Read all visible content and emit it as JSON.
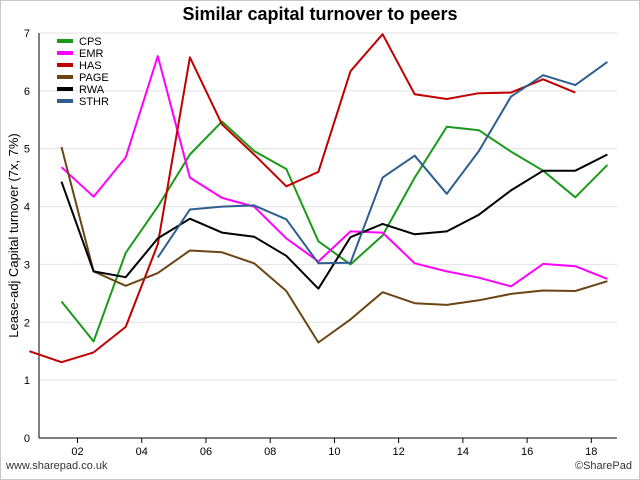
{
  "page": {
    "title": "Similar capital turnover to peers",
    "footer_left": "www.sharepad.co.uk",
    "footer_right": "©SharePad"
  },
  "chart_data": {
    "type": "line",
    "title": "Similar capital turnover to peers",
    "xlabel": "",
    "ylabel": "Lease-adj Capital turnover (7x, 7%)",
    "xlim": [
      2000.8,
      2018.8
    ],
    "ylim": [
      0,
      7
    ],
    "xticks": [
      2002,
      2004,
      2006,
      2008,
      2010,
      2012,
      2014,
      2016,
      2018
    ],
    "xtick_labels": [
      "02",
      "04",
      "06",
      "08",
      "10",
      "12",
      "14",
      "16",
      "18"
    ],
    "yticks": [
      0,
      1,
      2,
      3,
      4,
      5,
      6,
      7
    ],
    "grid": "horizontal",
    "legend_position": "top-left",
    "series": [
      {
        "name": "CPS",
        "color": "#1a9a1a",
        "points": [
          [
            2001.5,
            2.36
          ],
          [
            2002.5,
            1.67
          ],
          [
            2003.5,
            3.2
          ],
          [
            2004.5,
            4.0
          ],
          [
            2005.5,
            4.9
          ],
          [
            2006.5,
            5.47
          ],
          [
            2007.5,
            4.96
          ],
          [
            2008.5,
            4.65
          ],
          [
            2009.5,
            3.4
          ],
          [
            2010.5,
            3.0
          ],
          [
            2011.5,
            3.5
          ],
          [
            2012.5,
            4.5
          ],
          [
            2013.5,
            5.38
          ],
          [
            2014.5,
            5.32
          ],
          [
            2015.5,
            4.95
          ],
          [
            2016.5,
            4.62
          ],
          [
            2017.5,
            4.16
          ],
          [
            2018.5,
            4.72
          ]
        ]
      },
      {
        "name": "EMR",
        "color": "#ff00ff",
        "points": [
          [
            2001.5,
            4.68
          ],
          [
            2002.5,
            4.17
          ],
          [
            2003.5,
            4.85
          ],
          [
            2004.5,
            6.6
          ],
          [
            2005.5,
            4.5
          ],
          [
            2006.5,
            4.15
          ],
          [
            2007.5,
            4.0
          ],
          [
            2008.5,
            3.45
          ],
          [
            2009.5,
            3.05
          ],
          [
            2010.5,
            3.57
          ],
          [
            2011.5,
            3.55
          ],
          [
            2012.5,
            3.02
          ],
          [
            2013.5,
            2.88
          ],
          [
            2014.5,
            2.77
          ],
          [
            2015.5,
            2.62
          ],
          [
            2016.5,
            3.01
          ],
          [
            2017.5,
            2.97
          ],
          [
            2018.5,
            2.75
          ]
        ]
      },
      {
        "name": "HAS",
        "color": "#c00000",
        "points": [
          [
            2000.5,
            1.5
          ],
          [
            2001.5,
            1.31
          ],
          [
            2002.5,
            1.48
          ],
          [
            2003.5,
            1.92
          ],
          [
            2004.5,
            3.35
          ],
          [
            2005.5,
            6.58
          ],
          [
            2006.5,
            5.42
          ],
          [
            2007.5,
            4.9
          ],
          [
            2008.5,
            4.35
          ],
          [
            2009.5,
            4.6
          ],
          [
            2010.5,
            6.34
          ],
          [
            2011.5,
            6.98
          ],
          [
            2012.5,
            5.94
          ],
          [
            2013.5,
            5.86
          ],
          [
            2014.5,
            5.96
          ],
          [
            2015.5,
            5.97
          ],
          [
            2016.5,
            6.2
          ],
          [
            2017.5,
            5.97
          ]
        ]
      },
      {
        "name": "PAGE",
        "color": "#6b4513",
        "points": [
          [
            2001.5,
            5.03
          ],
          [
            2002.5,
            2.88
          ],
          [
            2003.5,
            2.63
          ],
          [
            2004.5,
            2.85
          ],
          [
            2005.5,
            3.24
          ],
          [
            2006.5,
            3.21
          ],
          [
            2007.5,
            3.02
          ],
          [
            2008.5,
            2.54
          ],
          [
            2009.5,
            1.65
          ],
          [
            2010.5,
            2.05
          ],
          [
            2011.5,
            2.52
          ],
          [
            2012.5,
            2.33
          ],
          [
            2013.5,
            2.3
          ],
          [
            2014.5,
            2.38
          ],
          [
            2015.5,
            2.49
          ],
          [
            2016.5,
            2.55
          ],
          [
            2017.5,
            2.54
          ],
          [
            2018.5,
            2.71
          ]
        ]
      },
      {
        "name": "RWA",
        "color": "#000000",
        "points": [
          [
            2001.5,
            4.43
          ],
          [
            2002.5,
            2.88
          ],
          [
            2003.5,
            2.78
          ],
          [
            2004.5,
            3.45
          ],
          [
            2005.5,
            3.79
          ],
          [
            2006.5,
            3.55
          ],
          [
            2007.5,
            3.48
          ],
          [
            2008.5,
            3.15
          ],
          [
            2009.5,
            2.58
          ],
          [
            2010.5,
            3.47
          ],
          [
            2011.5,
            3.7
          ],
          [
            2012.5,
            3.52
          ],
          [
            2013.5,
            3.57
          ],
          [
            2014.5,
            3.86
          ],
          [
            2015.5,
            4.28
          ],
          [
            2016.5,
            4.62
          ],
          [
            2017.5,
            4.62
          ],
          [
            2018.5,
            4.9
          ]
        ]
      },
      {
        "name": "STHR",
        "color": "#2f5d8f",
        "points": [
          [
            2004.5,
            3.12
          ],
          [
            2005.5,
            3.95
          ],
          [
            2006.5,
            4.0
          ],
          [
            2007.5,
            4.02
          ],
          [
            2008.5,
            3.78
          ],
          [
            2009.5,
            3.02
          ],
          [
            2010.5,
            3.03
          ],
          [
            2011.5,
            4.5
          ],
          [
            2012.5,
            4.88
          ],
          [
            2013.5,
            4.22
          ],
          [
            2014.5,
            4.96
          ],
          [
            2015.5,
            5.9
          ],
          [
            2016.5,
            6.27
          ],
          [
            2017.5,
            6.1
          ],
          [
            2018.5,
            6.5
          ]
        ]
      }
    ]
  }
}
